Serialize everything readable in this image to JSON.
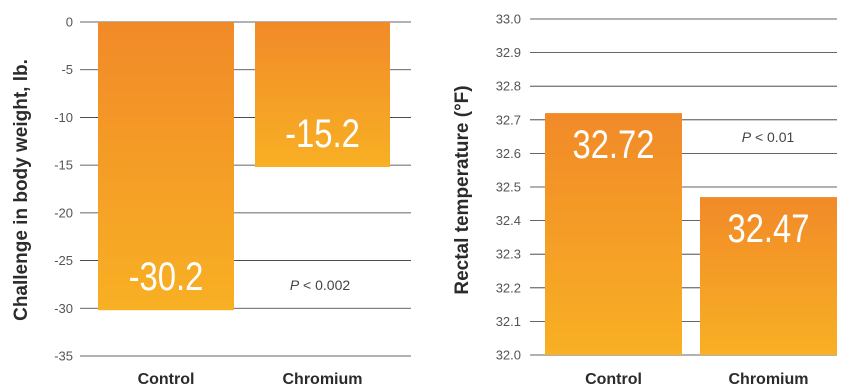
{
  "colors": {
    "bar_top": "#f18a28",
    "bar_bottom": "#f8b024",
    "grid": "#333333",
    "text": "#2b2b2b"
  },
  "chart_data": [
    {
      "type": "bar",
      "categories": [
        "Control",
        "Chromium"
      ],
      "values": [
        -30.2,
        -15.2
      ],
      "value_labels": [
        "-30.2",
        "-15.2"
      ],
      "ylabel": "Challenge in body weight, lb.",
      "xlabel": "",
      "ylim": [
        -35,
        0
      ],
      "yticks": [
        0,
        -5,
        -10,
        -15,
        -20,
        -25,
        -30,
        -35
      ],
      "grid": true,
      "annotation": {
        "italic": "P",
        "text": " < 0.002"
      }
    },
    {
      "type": "bar",
      "categories": [
        "Control",
        "Chromium"
      ],
      "values": [
        32.72,
        32.47
      ],
      "value_labels": [
        "32.72",
        "32.47"
      ],
      "ylabel": "Rectal temperature (°F)",
      "xlabel": "",
      "ylim": [
        32.0,
        33.0
      ],
      "yticks": [
        33.0,
        32.9,
        32.8,
        32.7,
        32.6,
        32.5,
        32.4,
        32.3,
        32.2,
        32.1,
        32.0
      ],
      "grid": true,
      "annotation": {
        "italic": "P",
        "text": " < 0.01"
      }
    }
  ]
}
